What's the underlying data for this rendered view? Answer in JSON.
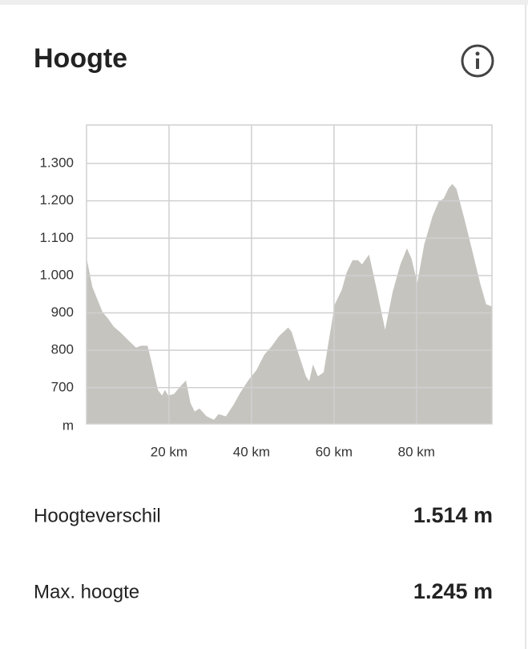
{
  "header": {
    "title": "Hoogte"
  },
  "chart_data": {
    "type": "area",
    "y_label": "m",
    "x": [
      0,
      1.4,
      2.3,
      3.9,
      5.2,
      6.6,
      8.2,
      10.1,
      12.0,
      13.2,
      14.8,
      15.9,
      17.3,
      18.3,
      19.0,
      19.8,
      21.2,
      22.5,
      24.1,
      25.2,
      26.2,
      27.4,
      29.1,
      30.9,
      32.0,
      33.8,
      35.7,
      37.3,
      39.2,
      41.2,
      43.1,
      45.0,
      46.6,
      48.9,
      49.7,
      51.3,
      53.2,
      54.0,
      54.9,
      56.1,
      57.5,
      58.6,
      60.2,
      61.9,
      63.1,
      64.5,
      65.8,
      66.8,
      68.5,
      70.3,
      72.4,
      74.2,
      76.1,
      77.7,
      78.8,
      80.2,
      81.9,
      83.9,
      85.4,
      86.6,
      87.8,
      88.7,
      89.7,
      91.7,
      93.6,
      95.5,
      96.9,
      98.3
    ],
    "values": [
      1048,
      970,
      945,
      902,
      885,
      863,
      848,
      827,
      807,
      812,
      812,
      762,
      694,
      679,
      694,
      679,
      683,
      700,
      719,
      659,
      636,
      644,
      623,
      614,
      629,
      623,
      655,
      687,
      719,
      747,
      788,
      812,
      837,
      861,
      850,
      794,
      730,
      717,
      762,
      730,
      741,
      816,
      923,
      962,
      1009,
      1041,
      1041,
      1030,
      1056,
      966,
      855,
      955,
      1030,
      1073,
      1045,
      981,
      1084,
      1159,
      1198,
      1206,
      1234,
      1245,
      1232,
      1148,
      1063,
      977,
      923,
      917
    ],
    "color": "#c5c4bf",
    "xlim": [
      0,
      98.3
    ],
    "ylim": [
      603,
      1403
    ],
    "xticks": [
      {
        "value": 20,
        "label": "20 km"
      },
      {
        "value": 40,
        "label": "40 km"
      },
      {
        "value": 60,
        "label": "60 km"
      },
      {
        "value": 80,
        "label": "80 km"
      }
    ],
    "yticks": [
      700,
      800,
      900,
      {
        "value": 1000,
        "label": "1.000"
      },
      {
        "value": 1100,
        "label": "1.100"
      },
      {
        "value": 1200,
        "label": "1.200"
      },
      {
        "value": 1300,
        "label": "1.300"
      }
    ],
    "grid": true
  },
  "stats": [
    {
      "label": "Hoogteverschil",
      "value": "1.514 m"
    },
    {
      "label": "Max. hoogte",
      "value": "1.245 m"
    }
  ]
}
